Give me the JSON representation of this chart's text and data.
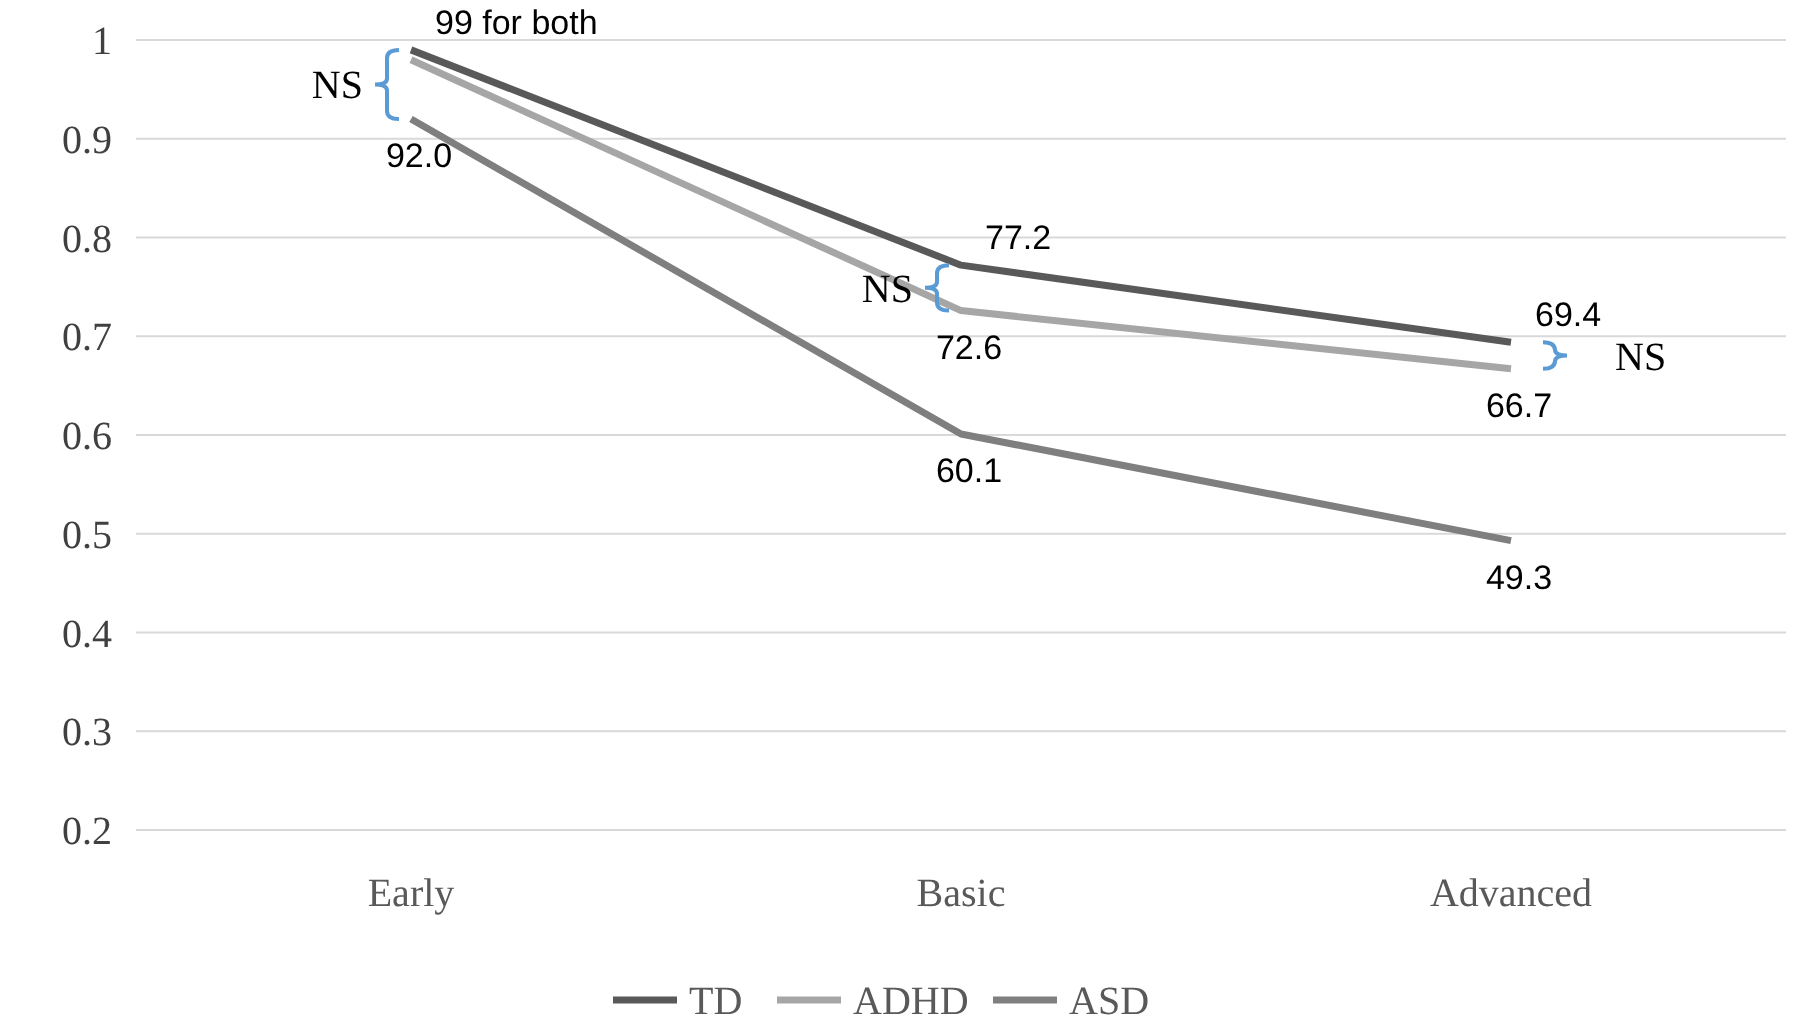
{
  "chart_data": {
    "type": "line",
    "categories": [
      "Early",
      "Basic",
      "Advanced"
    ],
    "series": [
      {
        "name": "TD",
        "color": "#595959",
        "values": [
          0.99,
          0.772,
          0.694
        ]
      },
      {
        "name": "ADHD",
        "color": "#a6a6a6",
        "values": [
          0.98,
          0.726,
          0.667
        ]
      },
      {
        "name": "ASD",
        "color": "#7f7f7f",
        "values": [
          0.92,
          0.601,
          0.493
        ]
      }
    ],
    "ylim": [
      0.2,
      1
    ],
    "yticks": [
      0.2,
      0.3,
      0.4,
      0.5,
      0.6,
      0.7,
      0.8,
      0.9,
      1
    ],
    "grid": "y",
    "legend": "bottom",
    "marker": "none",
    "line_style": "solid",
    "annotations": [
      {
        "text": "99 for both",
        "x": "Early",
        "y": 0.99
      },
      {
        "text": "92.0",
        "x": "Early",
        "y": 0.92
      },
      {
        "text": "77.2",
        "x": "Basic",
        "y": 0.772
      },
      {
        "text": "72.6",
        "x": "Basic",
        "y": 0.726
      },
      {
        "text": "60.1",
        "x": "Basic",
        "y": 0.601
      },
      {
        "text": "69.4",
        "x": "Advanced",
        "y": 0.694
      },
      {
        "text": "66.7",
        "x": "Advanced",
        "y": 0.667
      },
      {
        "text": "49.3",
        "x": "Advanced",
        "y": 0.493
      },
      "NS",
      "NS",
      "NS"
    ]
  }
}
